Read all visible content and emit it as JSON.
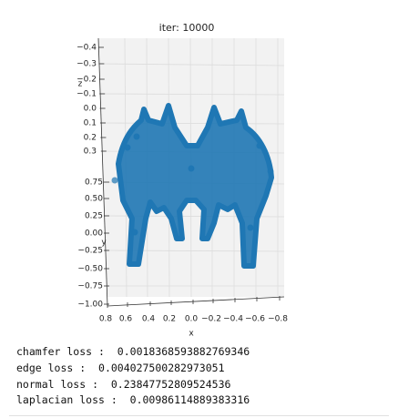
{
  "output": {
    "figure": {
      "title": "iter: 10000",
      "z_label": "z",
      "z_ticks": [
        "−0.4",
        "−0.3",
        "−0.2",
        "−0.1",
        "0.0",
        "0.1",
        "0.2",
        "0.3"
      ],
      "y_label": "y",
      "y_ticks": [
        "0.75",
        "0.50",
        "0.25",
        "0.00",
        "−0.25",
        "−0.50",
        "−0.75",
        "−1.00"
      ],
      "x_label": "x",
      "x_ticks": [
        "0.8",
        "0.6",
        "0.4",
        "0.2",
        "0.0",
        "−0.2",
        "−0.4",
        "−0.6",
        "−0.8"
      ]
    },
    "log_lines": [
      {
        "label": "chamfer loss : ",
        "value": "0.0018368593882769346"
      },
      {
        "label": "edge loss : ",
        "value": "0.004027500282973051"
      },
      {
        "label": "normal loss : ",
        "value": "0.23847752809524536"
      },
      {
        "label": "laplacian loss : ",
        "value": "0.00986114889383316"
      }
    ]
  }
}
